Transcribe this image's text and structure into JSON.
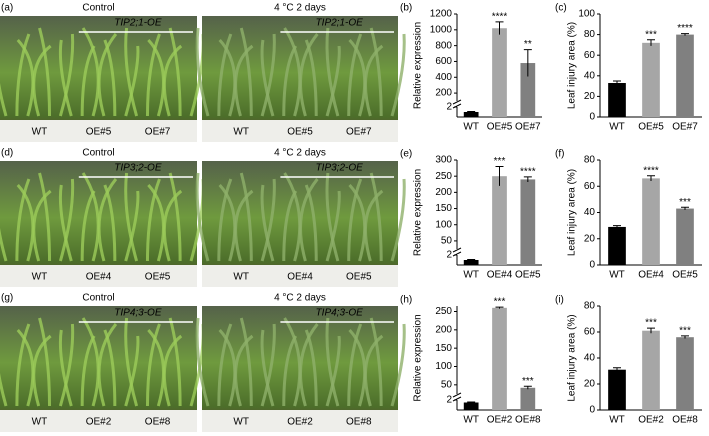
{
  "photos": [
    {
      "label": "(a)",
      "panels": [
        {
          "title": "Control",
          "line": "TIP2;1-OE",
          "genotypes": [
            "WT",
            "OE#5",
            "OE#7"
          ]
        },
        {
          "title": "4 °C 2 days",
          "line": "TIP2;1-OE",
          "genotypes": [
            "WT",
            "OE#5",
            "OE#7"
          ]
        }
      ]
    },
    {
      "label": "(d)",
      "panels": [
        {
          "title": "Control",
          "line": "TIP3;2-OE",
          "genotypes": [
            "WT",
            "OE#4",
            "OE#5"
          ]
        },
        {
          "title": "4 °C 2 days",
          "line": "TIP3;2-OE",
          "genotypes": [
            "WT",
            "OE#4",
            "OE#5"
          ]
        }
      ]
    },
    {
      "label": "(g)",
      "panels": [
        {
          "title": "Control",
          "line": "TIP4;3-OE",
          "genotypes": [
            "WT",
            "OE#2",
            "OE#8"
          ]
        },
        {
          "title": "4 °C 2 days",
          "line": "TIP4;3-OE",
          "genotypes": [
            "WT",
            "OE#2",
            "OE#8"
          ]
        }
      ]
    }
  ],
  "chart_data": [
    {
      "type": "bar",
      "label": "(b)",
      "ylabel": "Relative expression",
      "categories": [
        "WT",
        "OE#5",
        "OE#7"
      ],
      "values": [
        1,
        1020,
        580
      ],
      "errors": [
        0.1,
        80,
        170
      ],
      "colors": [
        "#000000",
        "#a6a6a6",
        "#808080"
      ],
      "annotations": [
        null,
        "****",
        "**"
      ],
      "lower_ylim": [
        0,
        2
      ],
      "lower_yticks": [
        2
      ],
      "ylim": [
        100,
        1200
      ],
      "yticks": [
        200,
        400,
        600,
        800,
        1000,
        1200
      ]
    },
    {
      "type": "bar",
      "label": "(c)",
      "ylabel": "Leaf injury area (%)",
      "categories": [
        "WT",
        "OE#5",
        "OE#7"
      ],
      "values": [
        33,
        72,
        80
      ],
      "errors": [
        2,
        3,
        1
      ],
      "colors": [
        "#000000",
        "#a6a6a6",
        "#808080"
      ],
      "annotations": [
        null,
        "***",
        "****"
      ],
      "ylim": [
        0,
        100
      ],
      "yticks": [
        0,
        20,
        40,
        60,
        80,
        100
      ]
    },
    {
      "type": "bar",
      "label": "(e)",
      "ylabel": "Relative expression",
      "categories": [
        "WT",
        "OE#4",
        "OE#5"
      ],
      "values": [
        1,
        250,
        240
      ],
      "errors": [
        0.1,
        30,
        8
      ],
      "colors": [
        "#000000",
        "#a6a6a6",
        "#808080"
      ],
      "annotations": [
        null,
        "***",
        "****"
      ],
      "lower_ylim": [
        0,
        2
      ],
      "lower_yticks": [
        2
      ],
      "ylim": [
        25,
        300
      ],
      "yticks": [
        50,
        100,
        150,
        200,
        250,
        300
      ]
    },
    {
      "type": "bar",
      "label": "(f)",
      "ylabel": "Leaf injury area (%)",
      "categories": [
        "WT",
        "OE#4",
        "OE#5"
      ],
      "values": [
        29,
        66,
        43
      ],
      "errors": [
        1,
        2,
        1
      ],
      "colors": [
        "#000000",
        "#a6a6a6",
        "#808080"
      ],
      "annotations": [
        null,
        "****",
        "***"
      ],
      "ylim": [
        0,
        80
      ],
      "yticks": [
        0,
        20,
        40,
        60,
        80
      ]
    },
    {
      "type": "bar",
      "label": "(h)",
      "ylabel": "Relative expression",
      "categories": [
        "WT",
        "OE#2",
        "OE#8"
      ],
      "values": [
        1.5,
        260,
        42
      ],
      "errors": [
        0.1,
        2,
        4
      ],
      "colors": [
        "#000000",
        "#a6a6a6",
        "#808080"
      ],
      "annotations": [
        null,
        "***",
        "***"
      ],
      "lower_ylim": [
        0,
        2
      ],
      "lower_yticks": [
        2
      ],
      "ylim": [
        25,
        265
      ],
      "yticks": [
        50,
        100,
        150,
        200,
        250
      ]
    },
    {
      "type": "bar",
      "label": "(i)",
      "ylabel": "Leaf injury area (%)",
      "categories": [
        "WT",
        "OE#2",
        "OE#8"
      ],
      "values": [
        31,
        61,
        56
      ],
      "errors": [
        1.5,
        2,
        1
      ],
      "colors": [
        "#000000",
        "#a6a6a6",
        "#808080"
      ],
      "annotations": [
        null,
        "***",
        "***"
      ],
      "ylim": [
        0,
        80
      ],
      "yticks": [
        0,
        20,
        40,
        60,
        80
      ]
    }
  ]
}
